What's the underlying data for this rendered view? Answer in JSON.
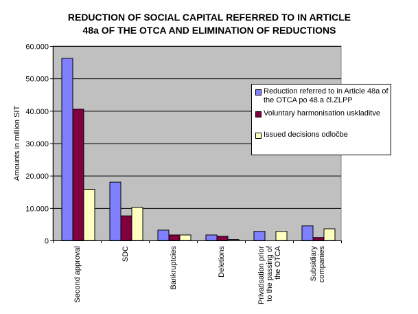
{
  "title_line1": "REDUCTION OF SOCIAL CAPITAL REFERRED TO IN ARTICLE",
  "title_line2": "48a OF THE OTCA AND ELIMINATION OF REDUCTIONS",
  "colors": {
    "series1": "#8080ff",
    "series2": "#800040",
    "series3": "#ffffc0",
    "plot_background": "#c0c0c0",
    "gridline": "#000000"
  },
  "chart_data": {
    "type": "bar",
    "title": "REDUCTION OF SOCIAL CAPITAL REFERRED TO IN ARTICLE 48a OF THE OTCA AND ELIMINATION OF REDUCTIONS",
    "ylabel": "Amounts in million SIT",
    "xlabel": "",
    "ylim": [
      0,
      60000
    ],
    "yticks": [
      0,
      10000,
      20000,
      30000,
      40000,
      50000,
      60000
    ],
    "ytick_labels": [
      "0",
      "10.000",
      "20.000",
      "30.000",
      "40.000",
      "50.000",
      "60.000"
    ],
    "grid": true,
    "legend_position": "right",
    "categories": [
      [
        "Second approval"
      ],
      [
        "SDC"
      ],
      [
        "Bankruptcies"
      ],
      [
        "Deletions"
      ],
      [
        "Privatisation prior",
        "to the passing of",
        "the OTCA"
      ],
      [
        "Subsidiary",
        "companies"
      ]
    ],
    "series": [
      {
        "name": "Reduction referred to in Article 48a of the OTCA po 48.a čl.ZLPP",
        "legend_lines": [
          "Reduction referred to in Article 48a of",
          "the OTCA po 48.a čl.ZLPP"
        ],
        "values": [
          56200,
          18000,
          3200,
          1700,
          2800,
          4500
        ]
      },
      {
        "name": "Voluntary harmonisation  uskladitve",
        "legend_lines": [
          "Voluntary harmonisation  uskladitve"
        ],
        "values": [
          40500,
          7600,
          1700,
          1300,
          0,
          900
        ]
      },
      {
        "name": "Issued decisions odločbe",
        "legend_lines": [
          "Issued decisions odločbe"
        ],
        "values": [
          15800,
          10200,
          1700,
          300,
          2800,
          3600
        ]
      }
    ]
  }
}
